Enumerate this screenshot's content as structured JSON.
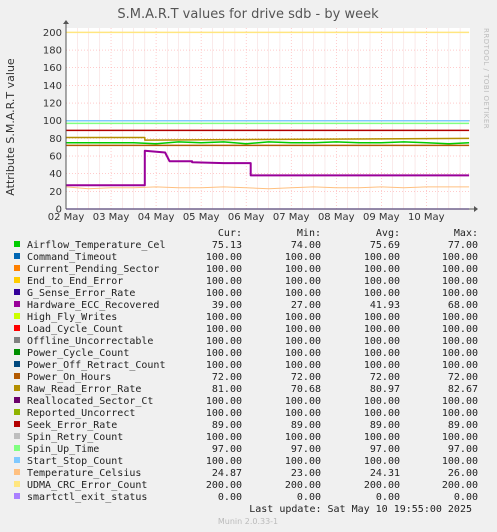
{
  "header": {
    "title": "S.M.A.R.T values for drive sdb - by week",
    "side_label": "RRDTOOL / TOBI OETIKER"
  },
  "chart_data": {
    "type": "line",
    "ylabel": "Attribute S.M.A.R.T value",
    "ylim": [
      0,
      205
    ],
    "yticks": [
      0,
      20,
      40,
      60,
      80,
      100,
      120,
      140,
      160,
      180,
      200
    ],
    "x_ticks": [
      "02 May",
      "03 May",
      "04 May",
      "05 May",
      "06 May",
      "07 May",
      "08 May",
      "09 May",
      "10 May"
    ],
    "xlim_days": [
      2.0,
      10.97
    ],
    "grid": true,
    "colors": {
      "plot_bg": "#ffffff",
      "grid": "#ff9999",
      "grid_minor": "#f4d6d6",
      "axis": "#555555"
    },
    "series": [
      {
        "name": "Airflow_Temperature_Cel",
        "color": "#00cc00",
        "width": 1.5,
        "points": [
          [
            2.0,
            75
          ],
          [
            3.5,
            75
          ],
          [
            4.0,
            74
          ],
          [
            4.5,
            76
          ],
          [
            5.0,
            75
          ],
          [
            5.5,
            76
          ],
          [
            6.0,
            74
          ],
          [
            6.5,
            76
          ],
          [
            7.0,
            75
          ],
          [
            7.5,
            75
          ],
          [
            8.0,
            76
          ],
          [
            8.5,
            75
          ],
          [
            9.0,
            75
          ],
          [
            9.5,
            76
          ],
          [
            10.0,
            75
          ],
          [
            10.5,
            74
          ],
          [
            10.95,
            75
          ]
        ]
      },
      {
        "name": "Command_Timeout",
        "color": "#0066b3",
        "width": 1,
        "points": [
          [
            2.0,
            100
          ],
          [
            10.95,
            100
          ]
        ]
      },
      {
        "name": "Current_Pending_Sector",
        "color": "#ff8000",
        "width": 1,
        "points": [
          [
            2.0,
            100
          ],
          [
            10.95,
            100
          ]
        ]
      },
      {
        "name": "End_to_End_Error",
        "color": "#ffcc00",
        "width": 1,
        "points": [
          [
            2.0,
            100
          ],
          [
            10.95,
            100
          ]
        ]
      },
      {
        "name": "G_Sense_Error_Rate",
        "color": "#330099",
        "width": 1,
        "points": [
          [
            2.0,
            100
          ],
          [
            10.95,
            100
          ]
        ]
      },
      {
        "name": "Hardware_ECC_Recovered",
        "color": "#990099",
        "width": 2,
        "points": [
          [
            2.0,
            27
          ],
          [
            3.75,
            27
          ],
          [
            3.75,
            66
          ],
          [
            4.2,
            64
          ],
          [
            4.3,
            54
          ],
          [
            4.8,
            54
          ],
          [
            4.8,
            53
          ],
          [
            5.5,
            52
          ],
          [
            6.1,
            52
          ],
          [
            6.1,
            38
          ],
          [
            10.95,
            38
          ]
        ]
      },
      {
        "name": "High_Fly_Writes",
        "color": "#ccff00",
        "width": 1,
        "points": [
          [
            2.0,
            100
          ],
          [
            10.95,
            100
          ]
        ]
      },
      {
        "name": "Load_Cycle_Count",
        "color": "#ff0000",
        "width": 1,
        "points": [
          [
            2.0,
            100
          ],
          [
            10.95,
            100
          ]
        ]
      },
      {
        "name": "Offline_Uncorrectable",
        "color": "#808080",
        "width": 1,
        "points": [
          [
            2.0,
            100
          ],
          [
            10.95,
            100
          ]
        ]
      },
      {
        "name": "Power_Cycle_Count",
        "color": "#008f00",
        "width": 1,
        "points": [
          [
            2.0,
            100
          ],
          [
            10.95,
            100
          ]
        ]
      },
      {
        "name": "Power_Off_Retract_Count",
        "color": "#00487d",
        "width": 1,
        "points": [
          [
            2.0,
            100
          ],
          [
            10.95,
            100
          ]
        ]
      },
      {
        "name": "Power_On_Hours",
        "color": "#b35a00",
        "width": 1.5,
        "points": [
          [
            2.0,
            72
          ],
          [
            10.95,
            72
          ]
        ]
      },
      {
        "name": "Raw_Read_Error_Rate",
        "color": "#b38f00",
        "width": 1.5,
        "points": [
          [
            2.0,
            81
          ],
          [
            3.75,
            81
          ],
          [
            3.75,
            78
          ],
          [
            10.95,
            80
          ]
        ]
      },
      {
        "name": "Reallocated_Sector_Ct",
        "color": "#6b006b",
        "width": 1,
        "points": [
          [
            2.0,
            100
          ],
          [
            10.95,
            100
          ]
        ]
      },
      {
        "name": "Reported_Uncorrect",
        "color": "#8fb300",
        "width": 1,
        "points": [
          [
            2.0,
            100
          ],
          [
            10.95,
            100
          ]
        ]
      },
      {
        "name": "Seek_Error_Rate",
        "color": "#b30000",
        "width": 1.5,
        "points": [
          [
            2.0,
            89
          ],
          [
            10.95,
            89
          ]
        ]
      },
      {
        "name": "Spin_Retry_Count",
        "color": "#bebebe",
        "width": 1,
        "points": [
          [
            2.0,
            100
          ],
          [
            10.95,
            100
          ]
        ]
      },
      {
        "name": "Spin_Up_Time",
        "color": "#80ff80",
        "width": 1.5,
        "points": [
          [
            2.0,
            97
          ],
          [
            10.95,
            97
          ]
        ]
      },
      {
        "name": "Start_Stop_Count",
        "color": "#80c9ff",
        "width": 1.5,
        "points": [
          [
            2.0,
            100
          ],
          [
            10.95,
            100
          ]
        ]
      },
      {
        "name": "Temperature_Celsius",
        "color": "#ffc080",
        "width": 1,
        "points": [
          [
            2.0,
            25
          ],
          [
            2.5,
            23
          ],
          [
            3.0,
            24
          ],
          [
            3.5,
            24
          ],
          [
            4.0,
            25
          ],
          [
            4.5,
            24
          ],
          [
            5.0,
            24
          ],
          [
            5.5,
            25
          ],
          [
            6.0,
            24
          ],
          [
            6.5,
            23
          ],
          [
            7.0,
            24
          ],
          [
            7.5,
            25
          ],
          [
            8.0,
            24
          ],
          [
            8.5,
            24
          ],
          [
            9.0,
            25
          ],
          [
            9.5,
            24
          ],
          [
            10.0,
            25
          ],
          [
            10.5,
            25
          ],
          [
            10.95,
            25
          ]
        ]
      },
      {
        "name": "UDMA_CRC_Error_Count",
        "color": "#ffe680",
        "width": 1.5,
        "points": [
          [
            2.0,
            200
          ],
          [
            10.95,
            200
          ]
        ]
      },
      {
        "name": "smartctl_exit_status",
        "color": "#aa80ff",
        "width": 1.5,
        "points": [
          [
            2.0,
            0
          ],
          [
            10.95,
            0
          ]
        ]
      }
    ]
  },
  "legend": {
    "headers": {
      "cur": "Cur:",
      "min": "Min:",
      "avg": "Avg:",
      "max": "Max:"
    },
    "rows": [
      {
        "name": "Airflow_Temperature_Cel",
        "color": "#00cc00",
        "cur": "75.13",
        "min": "74.00",
        "avg": "75.69",
        "max": "77.00"
      },
      {
        "name": "Command_Timeout",
        "color": "#0066b3",
        "cur": "100.00",
        "min": "100.00",
        "avg": "100.00",
        "max": "100.00"
      },
      {
        "name": "Current_Pending_Sector",
        "color": "#ff8000",
        "cur": "100.00",
        "min": "100.00",
        "avg": "100.00",
        "max": "100.00"
      },
      {
        "name": "End_to_End_Error",
        "color": "#ffcc00",
        "cur": "100.00",
        "min": "100.00",
        "avg": "100.00",
        "max": "100.00"
      },
      {
        "name": "G_Sense_Error_Rate",
        "color": "#330099",
        "cur": "100.00",
        "min": "100.00",
        "avg": "100.00",
        "max": "100.00"
      },
      {
        "name": "Hardware_ECC_Recovered",
        "color": "#990099",
        "cur": "39.00",
        "min": "27.00",
        "avg": "41.93",
        "max": "68.00"
      },
      {
        "name": "High_Fly_Writes",
        "color": "#ccff00",
        "cur": "100.00",
        "min": "100.00",
        "avg": "100.00",
        "max": "100.00"
      },
      {
        "name": "Load_Cycle_Count",
        "color": "#ff0000",
        "cur": "100.00",
        "min": "100.00",
        "avg": "100.00",
        "max": "100.00"
      },
      {
        "name": "Offline_Uncorrectable",
        "color": "#808080",
        "cur": "100.00",
        "min": "100.00",
        "avg": "100.00",
        "max": "100.00"
      },
      {
        "name": "Power_Cycle_Count",
        "color": "#008f00",
        "cur": "100.00",
        "min": "100.00",
        "avg": "100.00",
        "max": "100.00"
      },
      {
        "name": "Power_Off_Retract_Count",
        "color": "#00487d",
        "cur": "100.00",
        "min": "100.00",
        "avg": "100.00",
        "max": "100.00"
      },
      {
        "name": "Power_On_Hours",
        "color": "#b35a00",
        "cur": "72.00",
        "min": "72.00",
        "avg": "72.00",
        "max": "72.00"
      },
      {
        "name": "Raw_Read_Error_Rate",
        "color": "#b38f00",
        "cur": "81.00",
        "min": "70.68",
        "avg": "80.97",
        "max": "82.67"
      },
      {
        "name": "Reallocated_Sector_Ct",
        "color": "#6b006b",
        "cur": "100.00",
        "min": "100.00",
        "avg": "100.00",
        "max": "100.00"
      },
      {
        "name": "Reported_Uncorrect",
        "color": "#8fb300",
        "cur": "100.00",
        "min": "100.00",
        "avg": "100.00",
        "max": "100.00"
      },
      {
        "name": "Seek_Error_Rate",
        "color": "#b30000",
        "cur": "89.00",
        "min": "89.00",
        "avg": "89.00",
        "max": "89.00"
      },
      {
        "name": "Spin_Retry_Count",
        "color": "#bebebe",
        "cur": "100.00",
        "min": "100.00",
        "avg": "100.00",
        "max": "100.00"
      },
      {
        "name": "Spin_Up_Time",
        "color": "#80ff80",
        "cur": "97.00",
        "min": "97.00",
        "avg": "97.00",
        "max": "97.00"
      },
      {
        "name": "Start_Stop_Count",
        "color": "#80c9ff",
        "cur": "100.00",
        "min": "100.00",
        "avg": "100.00",
        "max": "100.00"
      },
      {
        "name": "Temperature_Celsius",
        "color": "#ffc080",
        "cur": "24.87",
        "min": "23.00",
        "avg": "24.31",
        "max": "26.00"
      },
      {
        "name": "UDMA_CRC_Error_Count",
        "color": "#ffe680",
        "cur": "200.00",
        "min": "200.00",
        "avg": "200.00",
        "max": "200.00"
      },
      {
        "name": "smartctl_exit_status",
        "color": "#aa80ff",
        "cur": "0.00",
        "min": "0.00",
        "avg": "0.00",
        "max": "0.00"
      }
    ]
  },
  "footer": {
    "last_update": "Last update:  Sat May 10 19:55:00 2025",
    "version": "Munin 2.0.33-1"
  }
}
